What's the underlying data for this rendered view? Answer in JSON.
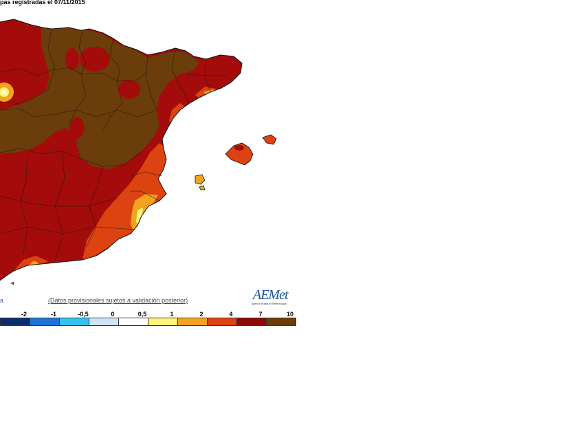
{
  "header": {
    "title": "pas registradas el 07/11/2015"
  },
  "footer": {
    "note": "(Datos provisionales sujetos a validación posterior)",
    "fragment": "a",
    "logo_text": "AEMet",
    "logo_subtitle": "Agencia Estatal de Meteorología"
  },
  "legend": {
    "labels": [
      "-2",
      "-1",
      "-0,5",
      "0",
      "0,5",
      "1",
      "2",
      "4",
      "7",
      "10"
    ],
    "colors": [
      "#0a2d6e",
      "#1f73d4",
      "#33c3ec",
      "#cfe3f5",
      "#ffffff",
      "#fff47a",
      "#f3a31f",
      "#dd4310",
      "#8c0909",
      "#6b3d0a"
    ]
  },
  "map": {
    "region": "Eastern Iberian Peninsula and Balearic Islands",
    "colors": {
      "very_high": "#6b3d0a",
      "high": "#a40b0b",
      "mid": "#dd4310",
      "low": "#f3a31f",
      "lowest": "#fff47a"
    }
  }
}
